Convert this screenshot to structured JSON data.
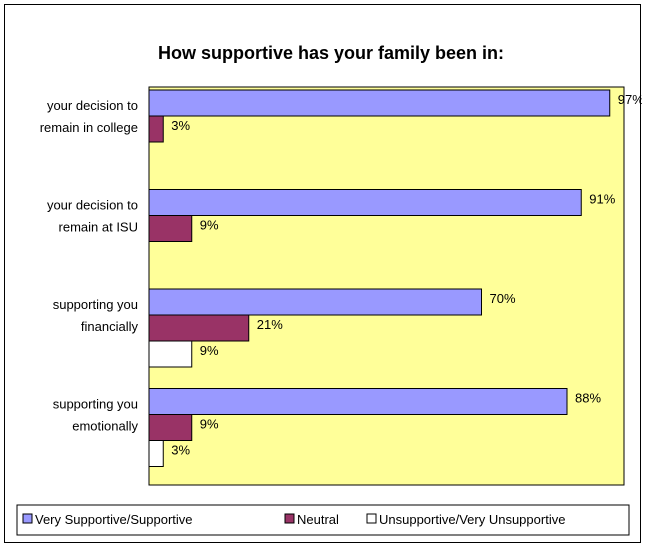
{
  "chart_data": {
    "type": "bar",
    "orientation": "horizontal",
    "title": "How supportive has your family been in:",
    "categories": [
      [
        "your decision to",
        "remain in college"
      ],
      [
        "your decision to",
        "remain at ISU"
      ],
      [
        "supporting you",
        "financially"
      ],
      [
        "supporting you",
        "emotionally"
      ]
    ],
    "series": [
      {
        "name": "Very Supportive/Supportive",
        "color": "#9999ff",
        "values": [
          97,
          91,
          70,
          88
        ]
      },
      {
        "name": "Neutral",
        "color": "#993366",
        "values": [
          3,
          9,
          21,
          9
        ]
      },
      {
        "name": "Unsupportive/Very Unsupportive",
        "color": "#ffffff",
        "values": [
          null,
          null,
          9,
          3
        ]
      }
    ],
    "value_suffix": "%",
    "xlim": [
      0,
      100
    ],
    "plot_background": "#ffff99",
    "grid": false,
    "legend_position": "bottom"
  }
}
